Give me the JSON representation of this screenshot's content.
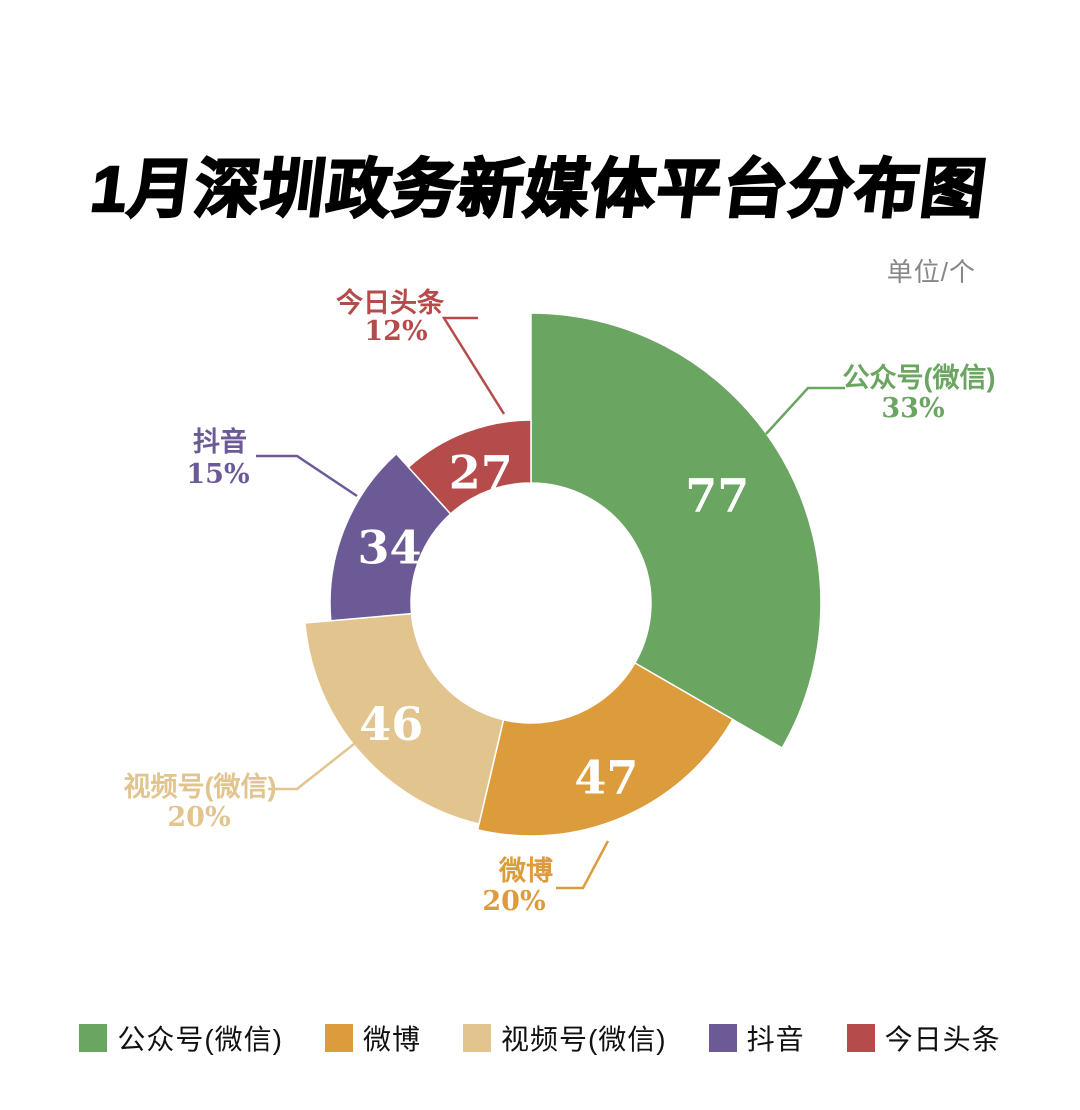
{
  "title": "1月深圳政务新媒体平台分布图",
  "unit_label": "单位/个",
  "chart_data": {
    "type": "pie",
    "subtype": "donut-variable-radius",
    "title": "1月深圳政务新媒体平台分布图",
    "unit": "单位/个",
    "start_angle_deg": 0,
    "direction": "clockwise",
    "categories": [
      "公众号(微信)",
      "微博",
      "视频号(微信)",
      "抖音",
      "今日头条"
    ],
    "values": [
      77,
      47,
      46,
      34,
      27
    ],
    "percent_labels": [
      "33%",
      "20%",
      "20%",
      "15%",
      "12%"
    ],
    "colors": [
      "#6BA562",
      "#DD9C3C",
      "#E2C48E",
      "#6C5A96",
      "#B54B4B"
    ],
    "total": 231,
    "value_labels_inside": true,
    "legend_position": "bottom",
    "legend_items": [
      "公众号(微信)",
      "微博",
      "视频号(微信)",
      "抖音",
      "今日头条"
    ]
  }
}
